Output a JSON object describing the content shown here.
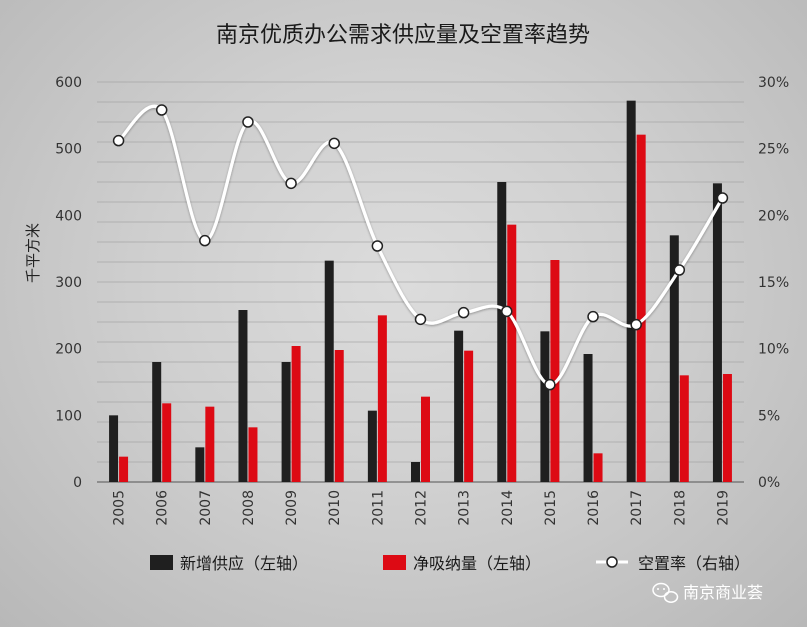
{
  "chart_data": {
    "type": "bar",
    "title": "南京优质办公需求供应量及空置率趋势",
    "categories": [
      "2005",
      "2006",
      "2007",
      "2008",
      "2009",
      "2010",
      "2011",
      "2012",
      "2013",
      "2014",
      "2015",
      "2016",
      "2017",
      "2018",
      "2019"
    ],
    "ylabel": "千平方米",
    "ylim": [
      0,
      600
    ],
    "y_ticks": [
      "0",
      "100",
      "200",
      "300",
      "400",
      "500",
      "600"
    ],
    "y2lim": [
      0,
      30
    ],
    "y2_ticks": [
      "0%",
      "5%",
      "10%",
      "15%",
      "20%",
      "25%",
      "30%"
    ],
    "grid": true,
    "legend_position": "bottom",
    "series": [
      {
        "name": "新增供应（左轴）",
        "type": "bar",
        "axis": "left",
        "color": "#1f1f1f",
        "values": [
          100,
          180,
          52,
          258,
          180,
          332,
          107,
          30,
          227,
          450,
          226,
          192,
          572,
          370,
          448
        ]
      },
      {
        "name": "净吸纳量（左轴）",
        "type": "bar",
        "axis": "left",
        "color": "#dd0a14",
        "values": [
          38,
          118,
          113,
          82,
          204,
          198,
          250,
          128,
          197,
          386,
          333,
          43,
          521,
          160,
          162
        ]
      },
      {
        "name": "空置率（右轴）",
        "type": "line",
        "axis": "right",
        "color": "#ffffff",
        "values": [
          25.6,
          27.9,
          18.1,
          27.0,
          22.4,
          25.4,
          17.7,
          12.2,
          12.7,
          12.8,
          7.3,
          12.4,
          11.8,
          15.9,
          21.3
        ]
      }
    ]
  },
  "watermark": {
    "icon": "wechat-icon",
    "text": "南京商业荟"
  }
}
